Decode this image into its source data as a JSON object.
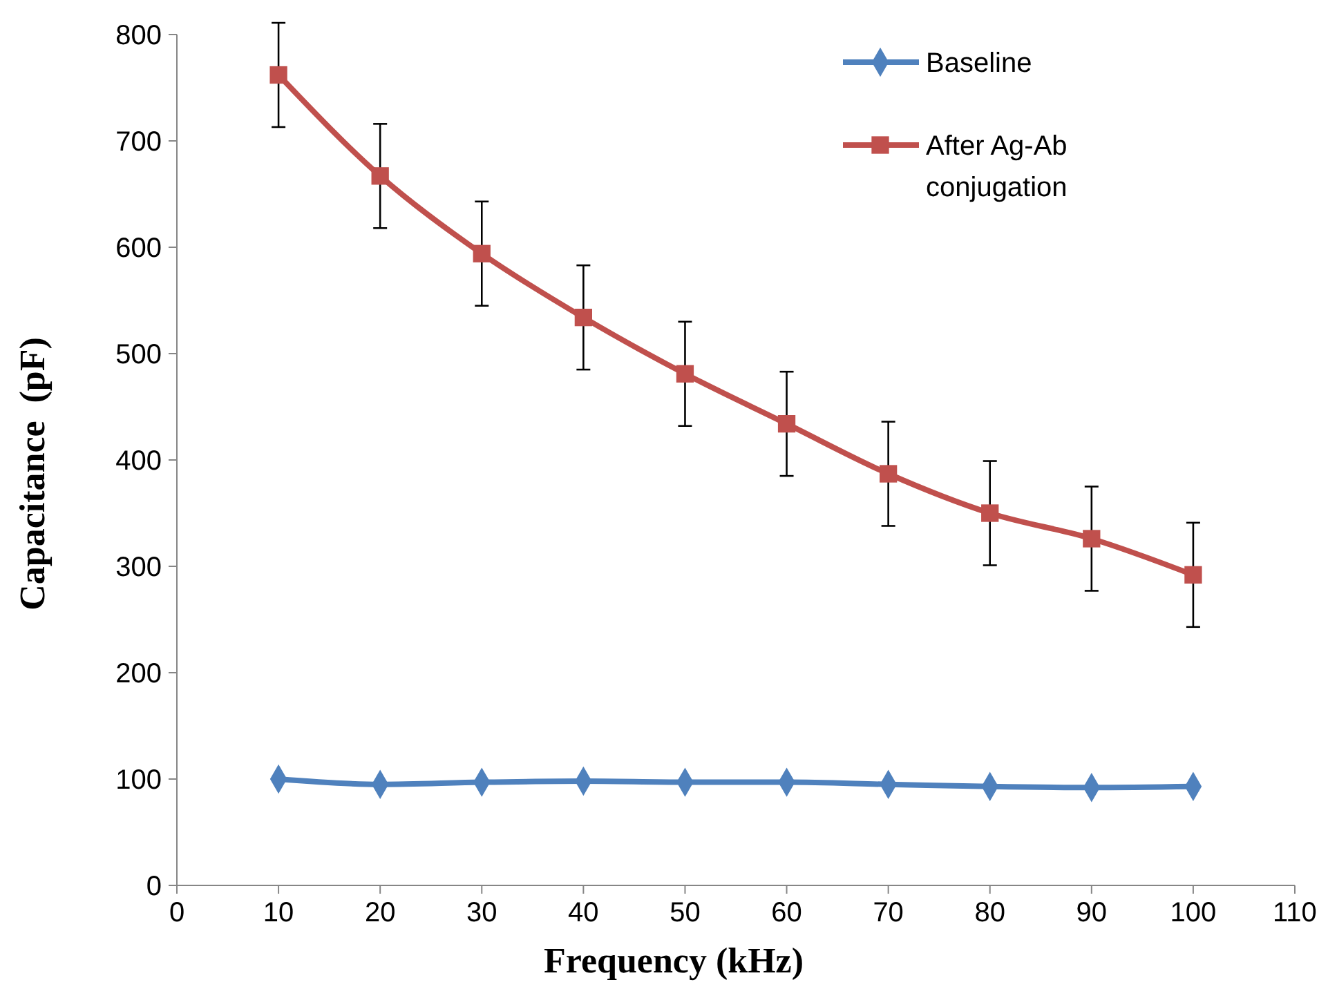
{
  "chart_data": {
    "type": "line",
    "xlabel": "Frequency (kHz)",
    "ylabel": "Capacitance  (pF)",
    "x": [
      10,
      20,
      30,
      40,
      50,
      60,
      70,
      80,
      90,
      100
    ],
    "xlim": [
      0,
      110
    ],
    "xticks": [
      0,
      10,
      20,
      30,
      40,
      50,
      60,
      70,
      80,
      90,
      100,
      110
    ],
    "ylim": [
      0,
      800
    ],
    "yticks": [
      0,
      100,
      200,
      300,
      400,
      500,
      600,
      700,
      800
    ],
    "grid": false,
    "legend": "top right",
    "series": [
      {
        "name": "Baseline",
        "color": "#4f81bd",
        "marker": "diamond",
        "values": [
          100,
          95,
          97,
          98,
          97,
          97,
          95,
          93,
          92,
          93
        ]
      },
      {
        "name": "After Ag-Ab conjugation",
        "color": "#c0504d",
        "marker": "square",
        "values": [
          762,
          667,
          594,
          534,
          481,
          434,
          387,
          350,
          326,
          292
        ],
        "errors": [
          49,
          49,
          49,
          49,
          49,
          49,
          49,
          49,
          49,
          49
        ]
      }
    ]
  }
}
